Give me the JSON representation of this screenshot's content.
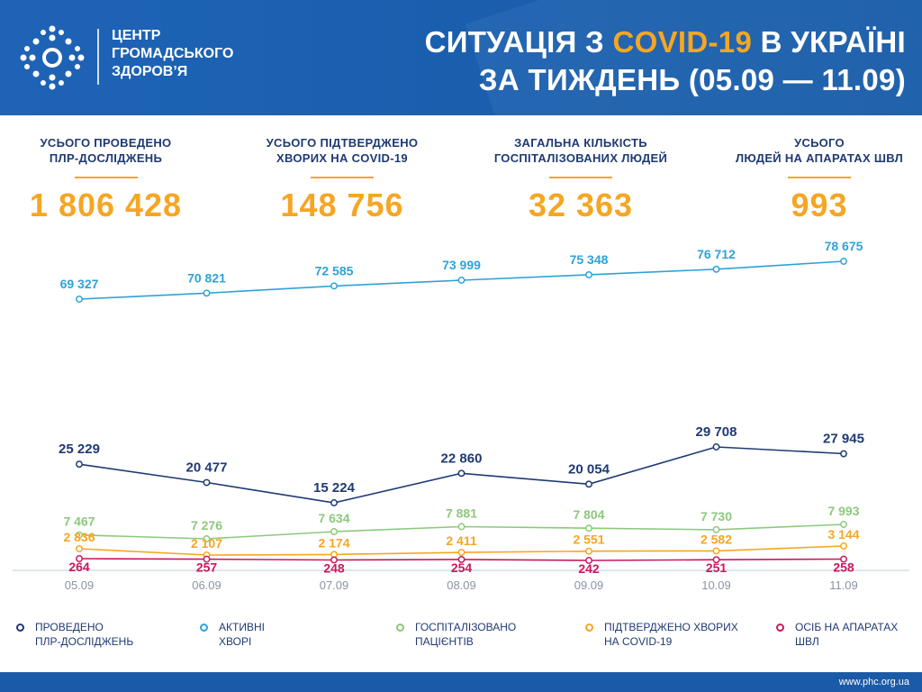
{
  "header": {
    "org_name": [
      "ЦЕНТР",
      "ГРОМАДСЬКОГО",
      "ЗДОРОВ’Я"
    ],
    "title_line1_pre": "СИТУАЦІЯ З ",
    "title_line1_hl": "COVID-19",
    "title_line1_post": " В УКРАЇНІ",
    "title_line2": "ЗА ТИЖДЕНЬ (05.09 — 11.09)",
    "accent_color": "#f5a623",
    "bg_color": "#1e63b6"
  },
  "stats": [
    {
      "label": [
        "УСЬОГО ПРОВЕДЕНО",
        "ПЛР-ДОСЛІДЖЕНЬ"
      ],
      "value": "1 806 428"
    },
    {
      "label": [
        "УСЬОГО ПІДТВЕРДЖЕНО",
        "ХВОРИХ НА COVID-19"
      ],
      "value": "148 756"
    },
    {
      "label": [
        "ЗАГАЛЬНА КІЛЬКІСТЬ",
        "ГОСПІТАЛІЗОВАНИХ ЛЮДЕЙ"
      ],
      "value": "32 363"
    },
    {
      "label": [
        "УСЬОГО",
        "ЛЮДЕЙ НА АПАРАТАХ ШВЛ"
      ],
      "value": "993"
    }
  ],
  "chart_data": {
    "type": "line",
    "categories": [
      "05.09",
      "06.09",
      "07.09",
      "08.09",
      "09.09",
      "10.09",
      "11.09"
    ],
    "series": [
      {
        "key": "active",
        "color": "#2ea3d6",
        "values": [
          69327,
          70821,
          72585,
          73999,
          75348,
          76712,
          78675
        ],
        "labels": [
          "69 327",
          "70 821",
          "72 585",
          "73 999",
          "75 348",
          "76 712",
          "78 675"
        ]
      },
      {
        "key": "tests",
        "color": "#1f3a73",
        "values": [
          25229,
          20477,
          15224,
          22860,
          20054,
          29708,
          27945
        ],
        "labels": [
          "25 229",
          "20 477",
          "15 224",
          "22 860",
          "20 054",
          "29 708",
          "27 945"
        ]
      },
      {
        "key": "hosp",
        "color": "#8cc97c",
        "values": [
          7467,
          7276,
          7634,
          7881,
          7804,
          7730,
          7993
        ],
        "labels": [
          "7 467",
          "7 276",
          "7 634",
          "7 881",
          "7 804",
          "7 730",
          "7 993"
        ]
      },
      {
        "key": "confirmed",
        "color": "#f5a623",
        "values": [
          2836,
          2107,
          2174,
          2411,
          2551,
          2582,
          3144
        ],
        "labels": [
          "2 836",
          "2 107",
          "2 174",
          "2 411",
          "2 551",
          "2 582",
          "3 144"
        ]
      },
      {
        "key": "ventilators",
        "color": "#c8185f",
        "values": [
          264,
          257,
          248,
          254,
          242,
          251,
          258
        ],
        "labels": [
          "264",
          "257",
          "248",
          "254",
          "242",
          "251",
          "258"
        ]
      }
    ],
    "legend_position": "bottom",
    "grid": false
  },
  "legend": [
    {
      "key": "tests",
      "color": "#1f3a73",
      "text": [
        "ПРОВЕДЕНО",
        "ПЛР-ДОСЛІДЖЕНЬ"
      ]
    },
    {
      "key": "active",
      "color": "#2ea3d6",
      "text": [
        "АКТИВНІ",
        "ХВОРІ"
      ]
    },
    {
      "key": "hosp",
      "color": "#8cc97c",
      "text": [
        "ГОСПІТАЛІЗОВАНО",
        "ПАЦІЄНТІВ"
      ]
    },
    {
      "key": "confirmed",
      "color": "#f5a623",
      "text": [
        "ПІДТВЕРДЖЕНО ХВОРИХ",
        "НА COVID-19"
      ]
    },
    {
      "key": "ventilators",
      "color": "#c8185f",
      "text": [
        "ОСІБ НА АПАРАТАХ",
        "ШВЛ"
      ]
    }
  ],
  "footer": {
    "url": "www.phc.org.ua"
  }
}
